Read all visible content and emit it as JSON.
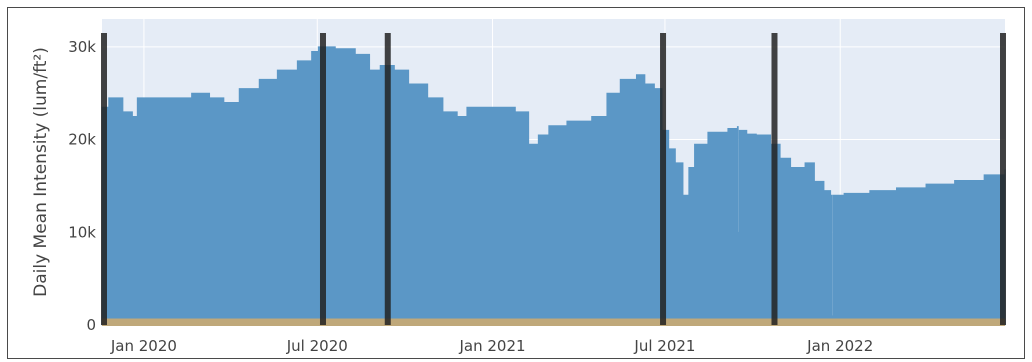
{
  "chart_data": {
    "type": "area",
    "title": "",
    "xlabel": "",
    "ylabel": "Daily Mean Intensity (lum/ft²)",
    "xlim": [
      "2019-11-18",
      "2022-06-23"
    ],
    "ylim": [
      0,
      33000
    ],
    "grid": true,
    "x_ticks": [
      {
        "date": "2020-01-01",
        "label": "Jan 2020"
      },
      {
        "date": "2020-07-01",
        "label": "Jul 2020"
      },
      {
        "date": "2021-01-01",
        "label": "Jan 2021"
      },
      {
        "date": "2021-07-01",
        "label": "Jul 2021"
      },
      {
        "date": "2022-01-01",
        "label": "Jan 2022"
      }
    ],
    "y_ticks": [
      {
        "value": 0,
        "label": "0"
      },
      {
        "value": 10000,
        "label": "10k"
      },
      {
        "value": 20000,
        "label": "20k"
      },
      {
        "value": 30000,
        "label": "30k"
      }
    ],
    "series": [
      {
        "color": "#5b97c6",
        "x": [
          "2019-11-18",
          "2019-11-25",
          "2019-12-10",
          "2019-12-20",
          "2019-12-25",
          "2020-01-01",
          "2020-01-20",
          "2020-02-20",
          "2020-03-10",
          "2020-03-25",
          "2020-04-10",
          "2020-05-01",
          "2020-05-20",
          "2020-06-10",
          "2020-06-25",
          "2020-07-02",
          "2020-07-20",
          "2020-08-10",
          "2020-08-25",
          "2020-09-05",
          "2020-09-20",
          "2020-10-05",
          "2020-10-25",
          "2020-11-10",
          "2020-11-25",
          "2020-12-05",
          "2020-12-20",
          "2021-01-10",
          "2021-01-25",
          "2021-02-08",
          "2021-02-18",
          "2021-03-01",
          "2021-03-20",
          "2021-04-15",
          "2021-05-01",
          "2021-05-15",
          "2021-06-01",
          "2021-06-10",
          "2021-06-20",
          "2021-06-28",
          "2021-07-05",
          "2021-07-12",
          "2021-07-20",
          "2021-07-26",
          "2021-08-01",
          "2021-08-15",
          "2021-09-05",
          "2021-09-15",
          "2021-09-16",
          "2021-09-17",
          "2021-09-25",
          "2021-10-05",
          "2021-10-20",
          "2021-10-30",
          "2021-11-10",
          "2021-11-25",
          "2021-12-05",
          "2021-12-15",
          "2021-12-22",
          "2021-12-23",
          "2021-12-24",
          "2022-01-05",
          "2022-02-01",
          "2022-03-01",
          "2022-04-01",
          "2022-05-01",
          "2022-06-01",
          "2022-06-23"
        ],
        "y": [
          23500,
          24500,
          23000,
          22500,
          24500,
          24500,
          24500,
          25000,
          24500,
          24000,
          25500,
          26500,
          27500,
          28500,
          29500,
          30000,
          29800,
          29200,
          27500,
          28000,
          27500,
          26000,
          24500,
          23000,
          22500,
          23500,
          23500,
          23500,
          23000,
          19500,
          20500,
          21500,
          22000,
          22500,
          25000,
          26500,
          27000,
          26000,
          25500,
          21000,
          19000,
          17500,
          14000,
          17000,
          19500,
          20800,
          21200,
          21400,
          10000,
          21000,
          20600,
          20500,
          19500,
          18000,
          17000,
          17500,
          15500,
          14500,
          14000,
          1000,
          14000,
          14200,
          14500,
          14800,
          15200,
          15600,
          16200,
          16800
        ]
      }
    ],
    "baseline_band": {
      "from": 0,
      "to": 700,
      "color": "#bfa87a"
    },
    "markers": {
      "color": "#222222",
      "dates": [
        "2019-11-18",
        "2020-07-07",
        "2020-09-13",
        "2021-06-29",
        "2021-10-24",
        "2022-06-23"
      ]
    }
  }
}
